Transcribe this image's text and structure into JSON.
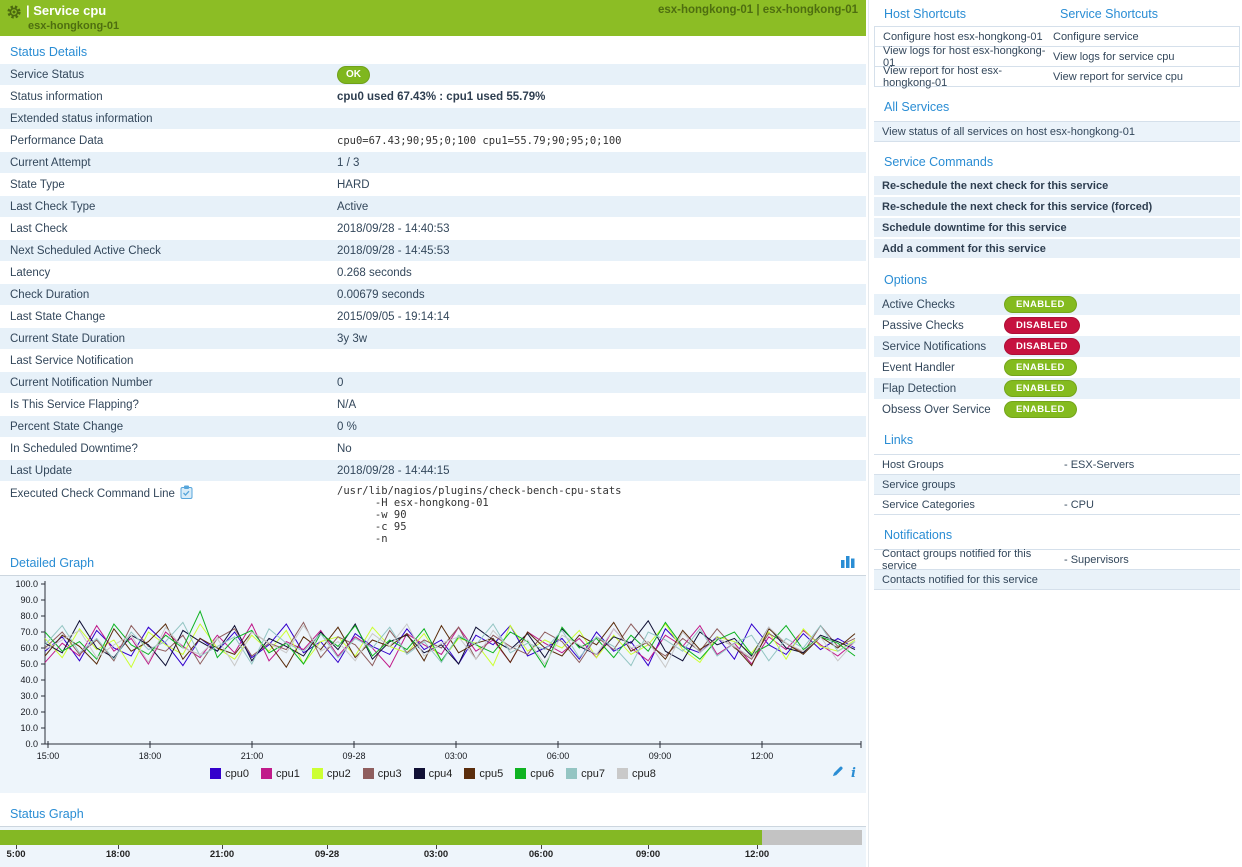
{
  "header": {
    "title": "| Service cpu",
    "subtitle": "esx-hongkong-01",
    "right_text": "esx-hongkong-01 | esx-hongkong-01"
  },
  "colors": {
    "header_green": "#8CBD25",
    "accent_blue": "#2A8DD4",
    "row_blue": "#E7F1F9",
    "ok_badge": "#7FB71E",
    "enabled": "#84BB1F",
    "disabled": "#C6123F",
    "status_bar_green": "#84B824",
    "status_bar_gray": "#C3C3C3"
  },
  "status_details": {
    "heading": "Status Details",
    "rows": [
      {
        "label": "Service Status",
        "type": "badge",
        "value": "OK"
      },
      {
        "label": "Status information",
        "type": "bold",
        "value": "cpu0 used 67.43% : cpu1 used 55.79%"
      },
      {
        "label": "Extended status information",
        "type": "text",
        "value": ""
      },
      {
        "label": "Performance Data",
        "type": "mono",
        "value": "cpu0=67.43;90;95;0;100 cpu1=55.79;90;95;0;100"
      },
      {
        "label": "Current Attempt",
        "type": "text",
        "value": "1 / 3"
      },
      {
        "label": "State Type",
        "type": "text",
        "value": "HARD"
      },
      {
        "label": "Last Check Type",
        "type": "text",
        "value": "Active"
      },
      {
        "label": "Last Check",
        "type": "text",
        "value": "2018/09/28 - 14:40:53"
      },
      {
        "label": "Next Scheduled Active Check",
        "type": "text",
        "value": "2018/09/28 - 14:45:53"
      },
      {
        "label": "Latency",
        "type": "text",
        "value": "0.268 seconds"
      },
      {
        "label": "Check Duration",
        "type": "text",
        "value": "0.00679 seconds"
      },
      {
        "label": "Last State Change",
        "type": "text",
        "value": "2015/09/05 - 19:14:14"
      },
      {
        "label": "Current State Duration",
        "type": "text",
        "value": "3y 3w"
      },
      {
        "label": "Last Service Notification",
        "type": "text",
        "value": ""
      },
      {
        "label": "Current Notification Number",
        "type": "text",
        "value": "0"
      },
      {
        "label": "Is This Service Flapping?",
        "type": "text",
        "value": "N/A"
      },
      {
        "label": "Percent State Change",
        "type": "text",
        "value": "0 %"
      },
      {
        "label": "In Scheduled Downtime?",
        "type": "text",
        "value": "No"
      },
      {
        "label": "Last Update",
        "type": "text",
        "value": "2018/09/28 - 14:44:15"
      },
      {
        "label": "Executed Check Command Line",
        "type": "cmdline",
        "icon": "clipboard-icon",
        "value": "/usr/lib/nagios/plugins/check-bench-cpu-stats\n      -H esx-hongkong-01\n      -w 90\n      -c 95\n      -n"
      }
    ]
  },
  "detailed_graph": {
    "heading": "Detailed Graph"
  },
  "status_graph": {
    "heading": "Status Graph"
  },
  "chart_data": [
    {
      "type": "line",
      "title": "Detailed Graph",
      "xlabel": "",
      "ylabel": "",
      "ylim": [
        0,
        100
      ],
      "grid": false,
      "legend_position": "bottom",
      "y_tick_labels": [
        "0.0",
        "10.0",
        "20.0",
        "30.0",
        "40.0",
        "50.0",
        "60.0",
        "70.0",
        "80.0",
        "90.0",
        "100.0"
      ],
      "x_tick_labels": [
        "15:00",
        "18:00",
        "21:00",
        "09-28",
        "03:00",
        "06:00",
        "09:00",
        "12:00"
      ],
      "series": [
        {
          "name": "cpu0",
          "color": "#3300CC",
          "values": [
            58,
            67,
            52,
            71,
            60,
            55,
            73,
            63,
            49,
            66,
            58,
            70,
            54,
            62,
            75,
            57,
            64,
            51,
            69,
            61,
            56,
            72,
            59,
            65,
            50,
            68,
            62,
            74,
            55,
            60,
            66,
            53,
            70,
            58,
            64,
            49,
            72,
            61,
            57,
            67,
            53,
            75,
            62,
            56,
            69,
            59,
            66,
            60
          ]
        },
        {
          "name": "cpu1",
          "color": "#C01A8A",
          "values": [
            51,
            63,
            55,
            74,
            58,
            66,
            50,
            70,
            61,
            54,
            68,
            57,
            75,
            52,
            64,
            59,
            71,
            55,
            67,
            60,
            48,
            69,
            62,
            56,
            73,
            58,
            65,
            51,
            70,
            63,
            57,
            66,
            54,
            72,
            60,
            52,
            68,
            61,
            74,
            56,
            63,
            50,
            67,
            59,
            71,
            62,
            55,
            64
          ]
        },
        {
          "name": "cpu2",
          "color": "#CCFF33",
          "values": [
            66,
            54,
            72,
            59,
            65,
            48,
            70,
            62,
            56,
            75,
            60,
            53,
            68,
            58,
            71,
            50,
            64,
            67,
            55,
            73,
            61,
            57,
            69,
            52,
            66,
            63,
            49,
            74,
            58,
            65,
            60,
            71,
            54,
            68,
            56,
            62,
            75,
            59,
            51,
            67,
            64,
            57,
            70,
            53,
            72,
            61,
            58,
            65
          ]
        },
        {
          "name": "cpu3",
          "color": "#8F5E5E",
          "values": [
            60,
            70,
            56,
            65,
            52,
            74,
            61,
            58,
            68,
            50,
            66,
            72,
            55,
            63,
            59,
            76,
            54,
            67,
            62,
            49,
            71,
            57,
            65,
            60,
            73,
            53,
            68,
            61,
            56,
            70,
            64,
            51,
            67,
            59,
            75,
            62,
            55,
            66,
            58,
            72,
            60,
            53,
            69,
            63,
            57,
            74,
            61,
            66
          ]
        },
        {
          "name": "cpu4",
          "color": "#101035",
          "values": [
            63,
            57,
            77,
            60,
            54,
            68,
            62,
            49,
            71,
            64,
            58,
            74,
            52,
            66,
            61,
            55,
            70,
            59,
            75,
            53,
            64,
            68,
            57,
            62,
            50,
            73,
            65,
            59,
            69,
            54,
            72,
            61,
            56,
            67,
            63,
            77,
            58,
            52,
            70,
            62,
            66,
            55,
            73,
            60,
            57,
            68,
            64,
            59
          ]
        },
        {
          "name": "cpu5",
          "color": "#5A2D0C",
          "values": [
            55,
            68,
            61,
            50,
            72,
            58,
            64,
            75,
            53,
            66,
            60,
            56,
            70,
            63,
            48,
            67,
            59,
            73,
            54,
            65,
            61,
            69,
            52,
            74,
            57,
            63,
            66,
            51,
            70,
            60,
            55,
            68,
            62,
            76,
            58,
            64,
            53,
            71,
            59,
            66,
            61,
            49,
            72,
            63,
            56,
            67,
            60,
            69
          ]
        },
        {
          "name": "cpu6",
          "color": "#0FB322",
          "values": [
            70,
            58,
            64,
            53,
            75,
            62,
            56,
            68,
            60,
            83,
            54,
            66,
            71,
            57,
            63,
            50,
            69,
            61,
            74,
            55,
            65,
            59,
            72,
            52,
            67,
            62,
            57,
            70,
            64,
            48,
            73,
            60,
            66,
            54,
            68,
            58,
            76,
            61,
            53,
            65,
            70,
            56,
            62,
            74,
            59,
            67,
            63,
            55
          ]
        },
        {
          "name": "cpu7",
          "color": "#94C5C3",
          "values": [
            62,
            74,
            57,
            66,
            53,
            70,
            59,
            64,
            76,
            55,
            61,
            67,
            50,
            72,
            63,
            58,
            69,
            54,
            66,
            60,
            73,
            56,
            64,
            51,
            68,
            62,
            75,
            57,
            63,
            59,
            71,
            54,
            67,
            61,
            49,
            70,
            65,
            58,
            72,
            55,
            63,
            68,
            52,
            66,
            60,
            74,
            58,
            64
          ]
        },
        {
          "name": "cpu8",
          "color": "#C9C9C9",
          "values": [
            59,
            65,
            71,
            54,
            62,
            68,
            51,
            73,
            60,
            56,
            66,
            49,
            70,
            63,
            57,
            74,
            58,
            64,
            52,
            69,
            61,
            75,
            55,
            63,
            67,
            53,
            71,
            59,
            65,
            50,
            68,
            62,
            56,
            72,
            60,
            64,
            48,
            70,
            57,
            66,
            61,
            54,
            73,
            63,
            58,
            67,
            52,
            64
          ]
        }
      ]
    },
    {
      "type": "bar",
      "title": "Status Graph",
      "x_tick_labels": [
        "5:00",
        "18:00",
        "21:00",
        "09-28",
        "03:00",
        "06:00",
        "09:00",
        "12:00"
      ],
      "segments": [
        {
          "state": "ok",
          "color": "#84B824",
          "fraction": 0.884
        },
        {
          "state": "no-data",
          "color": "#C3C3C3",
          "fraction": 0.116
        }
      ]
    }
  ],
  "right_panel": {
    "shortcuts": {
      "host_heading": "Host Shortcuts",
      "service_heading": "Service Shortcuts",
      "rows": [
        [
          "Configure host esx-hongkong-01",
          "Configure service"
        ],
        [
          "View logs for host esx-hongkong-01",
          "View logs for service cpu"
        ],
        [
          "View report for host esx-hongkong-01",
          "View report for service cpu"
        ]
      ]
    },
    "all_services": {
      "heading": "All Services",
      "items": [
        "View status of all services on host esx-hongkong-01"
      ]
    },
    "service_commands": {
      "heading": "Service Commands",
      "items": [
        "Re-schedule the next check for this service",
        "Re-schedule the next check for this service (forced)",
        "Schedule downtime for this service",
        "Add a comment for this service"
      ]
    },
    "options": {
      "heading": "Options",
      "rows": [
        {
          "label": "Active Checks",
          "state": "ENABLED"
        },
        {
          "label": "Passive Checks",
          "state": "DISABLED"
        },
        {
          "label": "Service Notifications",
          "state": "DISABLED"
        },
        {
          "label": "Event Handler",
          "state": "ENABLED"
        },
        {
          "label": "Flap Detection",
          "state": "ENABLED"
        },
        {
          "label": "Obsess Over Service",
          "state": "ENABLED"
        }
      ]
    },
    "links": {
      "heading": "Links",
      "rows": [
        {
          "label": "Host Groups",
          "value": "- ESX-Servers"
        },
        {
          "label": "Service groups",
          "value": ""
        },
        {
          "label": "Service Categories",
          "value": "- CPU"
        }
      ]
    },
    "notifications": {
      "heading": "Notifications",
      "rows": [
        {
          "label": "Contact groups notified for this service",
          "value": "- Supervisors"
        },
        {
          "label": "Contacts notified for this service",
          "value": ""
        }
      ]
    }
  }
}
